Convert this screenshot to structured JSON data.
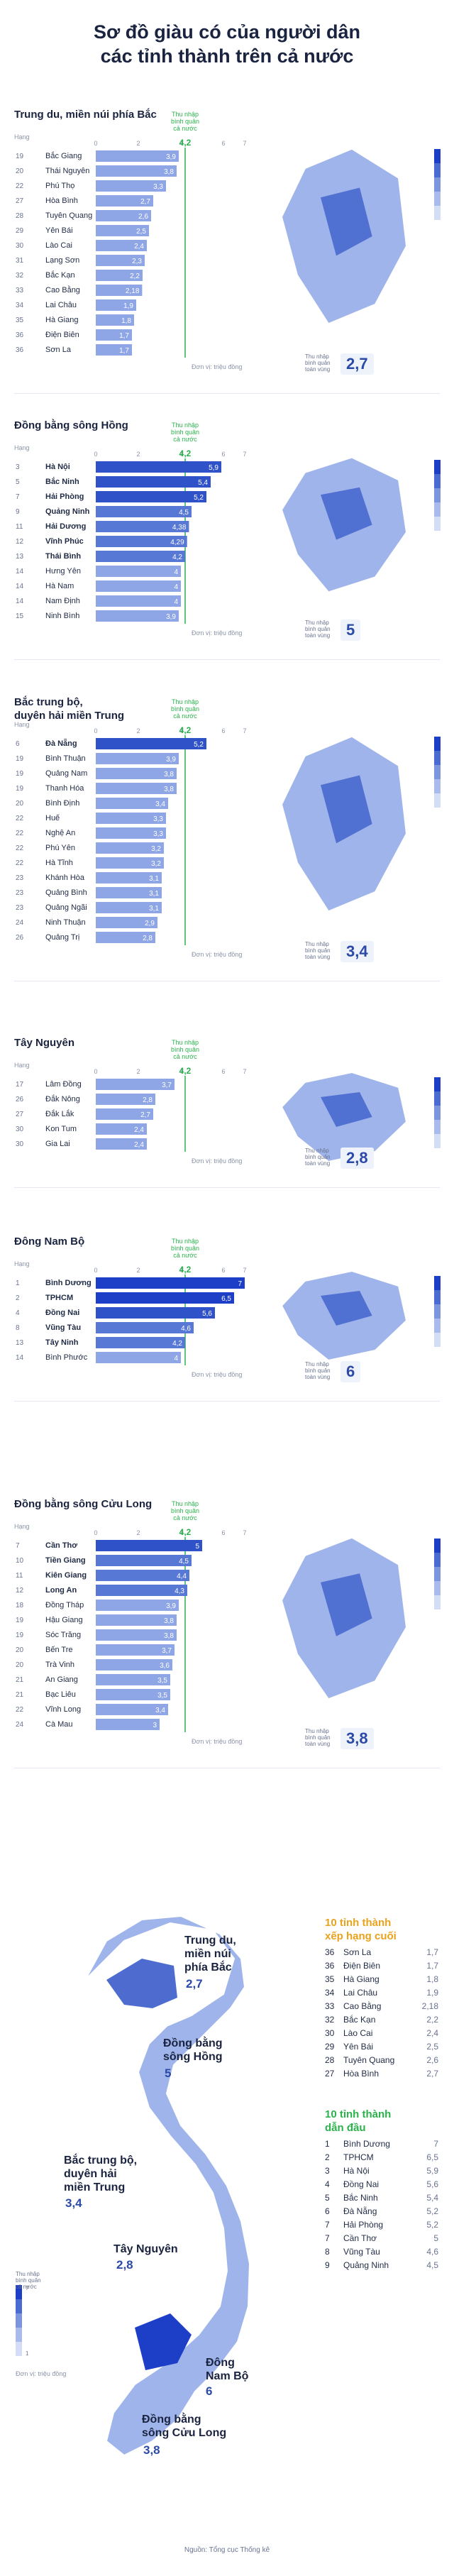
{
  "title": "Sơ đồ giàu có của người dân\ncác tỉnh thành trên cả nước",
  "labels": {
    "hang": "Hạng",
    "thu_nhap_note": "Thu nhập\nbình quân\ncả nước",
    "avg_note": "Thu nhập\nbình quân\ntoàn vùng",
    "unit": "Đơn vị: triệu đồng",
    "source": "Nguồn: Tổng cục Thống kê"
  },
  "colors": {
    "bar": "#8fa6e6",
    "bar_dark": "#2f52c8",
    "bar_top": "#1d3ec7",
    "national_line": "#2bb24c",
    "map_fill": "#9fb4ea",
    "map_outline": "#d8def0"
  },
  "national_avg": 4.2,
  "chart_data": [
    {
      "type": "bar",
      "region": "Trung du, miền núi phía Bắc",
      "avg": "2,7",
      "categories": [
        "Bắc Giang",
        "Thái Nguyên",
        "Phú Thọ",
        "Hòa Bình",
        "Tuyên Quang",
        "Yên Bái",
        "Lào Cai",
        "Lạng Sơn",
        "Bắc Kạn",
        "Cao Bằng",
        "Lai Châu",
        "Hà Giang",
        "Điện Biên",
        "Sơn La"
      ],
      "ranks": [
        "19",
        "20",
        "22",
        "27",
        "28",
        "29",
        "30",
        "31",
        "32",
        "33",
        "34",
        "35",
        "36",
        "36"
      ],
      "values": [
        3.9,
        3.8,
        3.3,
        2.7,
        2.6,
        2.5,
        2.4,
        2.3,
        2.2,
        2.18,
        1.9,
        1.8,
        1.7,
        1.7
      ],
      "labels": [
        "3,9",
        "3,8",
        "3,3",
        "2,7",
        "2,6",
        "2,5",
        "2,4",
        "2,3",
        "2,2",
        "2,18",
        "1,9",
        "1,8",
        "1,7",
        "1,7"
      ],
      "xlim": [
        0,
        7
      ],
      "ticks": [
        "0",
        "2",
        "4",
        "6",
        "7"
      ]
    },
    {
      "type": "bar",
      "region": "Đồng bằng sông Hồng",
      "avg": "5",
      "categories": [
        "Hà Nội",
        "Bắc Ninh",
        "Hải Phòng",
        "Quảng Ninh",
        "Hải Dương",
        "Vĩnh Phúc",
        "Thái Bình",
        "Hưng Yên",
        "Hà Nam",
        "Nam Định",
        "Ninh Bình"
      ],
      "ranks": [
        "3",
        "5",
        "7",
        "9",
        "11",
        "12",
        "13",
        "14",
        "14",
        "14",
        "15"
      ],
      "values": [
        5.9,
        5.4,
        5.2,
        4.5,
        4.38,
        4.29,
        4.2,
        4,
        4,
        4,
        3.9
      ],
      "labels": [
        "5,9",
        "5,4",
        "5,2",
        "4,5",
        "4,38",
        "4,29",
        "4,2",
        "4",
        "4",
        "4",
        "3,9"
      ],
      "xlim": [
        0,
        7
      ],
      "ticks": [
        "0",
        "2",
        "4",
        "6",
        "7"
      ]
    },
    {
      "type": "bar",
      "region": "Bắc trung bộ,\nduyên hải miền Trung",
      "avg": "3,4",
      "categories": [
        "Đà Nẵng",
        "Bình Thuận",
        "Quảng Nam",
        "Thanh Hóa",
        "Bình Định",
        "Huế",
        "Nghệ An",
        "Phú Yên",
        "Hà Tĩnh",
        "Khánh Hòa",
        "Quảng Bình",
        "Quảng Ngãi",
        "Ninh Thuận",
        "Quảng Trị"
      ],
      "ranks": [
        "6",
        "19",
        "19",
        "19",
        "20",
        "22",
        "22",
        "22",
        "22",
        "23",
        "23",
        "23",
        "24",
        "26"
      ],
      "values": [
        5.2,
        3.9,
        3.8,
        3.8,
        3.4,
        3.3,
        3.3,
        3.2,
        3.2,
        3.1,
        3.1,
        3.1,
        2.9,
        2.8
      ],
      "labels": [
        "5,2",
        "3,9",
        "3,8",
        "3,8",
        "3,4",
        "3,3",
        "3,3",
        "3,2",
        "3,2",
        "3,1",
        "3,1",
        "3,1",
        "2,9",
        "2,8"
      ],
      "xlim": [
        0,
        7
      ],
      "ticks": [
        "0",
        "2",
        "4",
        "6",
        "7"
      ]
    },
    {
      "type": "bar",
      "region": "Tây Nguyên",
      "avg": "2,8",
      "categories": [
        "Lâm Đồng",
        "Đắk Nông",
        "Đắk Lắk",
        "Kon Tum",
        "Gia Lai"
      ],
      "ranks": [
        "17",
        "26",
        "27",
        "30",
        "30"
      ],
      "values": [
        3.7,
        2.8,
        2.7,
        2.4,
        2.4
      ],
      "labels": [
        "3,7",
        "2,8",
        "2,7",
        "2,4",
        "2,4"
      ],
      "xlim": [
        0,
        7
      ],
      "ticks": [
        "0",
        "2",
        "4",
        "6",
        "7"
      ]
    },
    {
      "type": "bar",
      "region": "Đông Nam Bộ",
      "avg": "6",
      "categories": [
        "Bình Dương",
        "TPHCM",
        "Đồng Nai",
        "Vũng Tàu",
        "Tây Ninh",
        "Bình Phước"
      ],
      "ranks": [
        "1",
        "2",
        "4",
        "8",
        "13",
        "14"
      ],
      "values": [
        7,
        6.5,
        5.6,
        4.6,
        4.2,
        4
      ],
      "labels": [
        "7",
        "6,5",
        "5,6",
        "4,6",
        "4,2",
        "4"
      ],
      "xlim": [
        0,
        7
      ],
      "ticks": [
        "0",
        "2",
        "4",
        "6",
        "7"
      ]
    },
    {
      "type": "bar",
      "region": "Đồng bằng sông Cửu Long",
      "avg": "3,8",
      "categories": [
        "Cần Thơ",
        "Tiền Giang",
        "Kiên Giang",
        "Long An",
        "Đồng Tháp",
        "Hậu Giang",
        "Sóc Trăng",
        "Bến Tre",
        "Trà Vinh",
        "An Giang",
        "Bạc Liêu",
        "Vĩnh Long",
        "Cà Mau"
      ],
      "ranks": [
        "7",
        "10",
        "11",
        "12",
        "18",
        "19",
        "19",
        "20",
        "20",
        "21",
        "21",
        "22",
        "24"
      ],
      "values": [
        5,
        4.5,
        4.4,
        4.3,
        3.9,
        3.8,
        3.8,
        3.7,
        3.6,
        3.5,
        3.5,
        3.4,
        3
      ],
      "labels": [
        "5",
        "4,5",
        "4,4",
        "4,3",
        "3,9",
        "3,8",
        "3,8",
        "3,7",
        "3,6",
        "3,5",
        "3,5",
        "3,4",
        "3"
      ],
      "xlim": [
        0,
        7
      ],
      "ticks": [
        "0",
        "2",
        "4",
        "6",
        "7"
      ]
    }
  ],
  "overview": {
    "regions": [
      {
        "name": "Trung du,\nmiền núi\nphía Bắc",
        "value": "2,7"
      },
      {
        "name": "Đồng bằng\nsông Hồng",
        "value": "5"
      },
      {
        "name": "Bắc trung bộ,\nduyên hải\nmiền Trung",
        "value": "3,4"
      },
      {
        "name": "Tây Nguyên",
        "value": "2,8"
      },
      {
        "name": "Đông\nNam Bộ",
        "value": "6"
      },
      {
        "name": "Đồng bằng\nsông Cửu Long",
        "value": "3,8"
      }
    ],
    "bottom_title": "10 tỉnh thành\nxếp hạng cuối",
    "bottom": [
      {
        "rank": "36",
        "name": "Sơn La",
        "value": "1,7"
      },
      {
        "rank": "36",
        "name": "Điện Biên",
        "value": "1,7"
      },
      {
        "rank": "35",
        "name": "Hà Giang",
        "value": "1,8"
      },
      {
        "rank": "34",
        "name": "Lai Châu",
        "value": "1,9"
      },
      {
        "rank": "33",
        "name": "Cao Bằng",
        "value": "2,18"
      },
      {
        "rank": "32",
        "name": "Bắc Kạn",
        "value": "2,2"
      },
      {
        "rank": "30",
        "name": "Lào Cai",
        "value": "2,4"
      },
      {
        "rank": "29",
        "name": "Yên Bái",
        "value": "2,5"
      },
      {
        "rank": "28",
        "name": "Tuyên Quang",
        "value": "2,6"
      },
      {
        "rank": "27",
        "name": "Hòa Bình",
        "value": "2,7"
      }
    ],
    "top_title": "10 tỉnh thành\ndẫn đầu",
    "top": [
      {
        "rank": "1",
        "name": "Bình Dương",
        "value": "7"
      },
      {
        "rank": "2",
        "name": "TPHCM",
        "value": "6,5"
      },
      {
        "rank": "3",
        "name": "Hà Nội",
        "value": "5,9"
      },
      {
        "rank": "4",
        "name": "Đồng Nai",
        "value": "5,6"
      },
      {
        "rank": "5",
        "name": "Bắc Ninh",
        "value": "5,4"
      },
      {
        "rank": "6",
        "name": "Đà Nẵng",
        "value": "5,2"
      },
      {
        "rank": "7",
        "name": "Hải Phòng",
        "value": "5,2"
      },
      {
        "rank": "7",
        "name": "Cần Thơ",
        "value": "5"
      },
      {
        "rank": "8",
        "name": "Vũng Tàu",
        "value": "4,6"
      },
      {
        "rank": "9",
        "name": "Quảng Ninh",
        "value": "4,5"
      }
    ],
    "scale_labels": [
      "7",
      "1"
    ]
  }
}
